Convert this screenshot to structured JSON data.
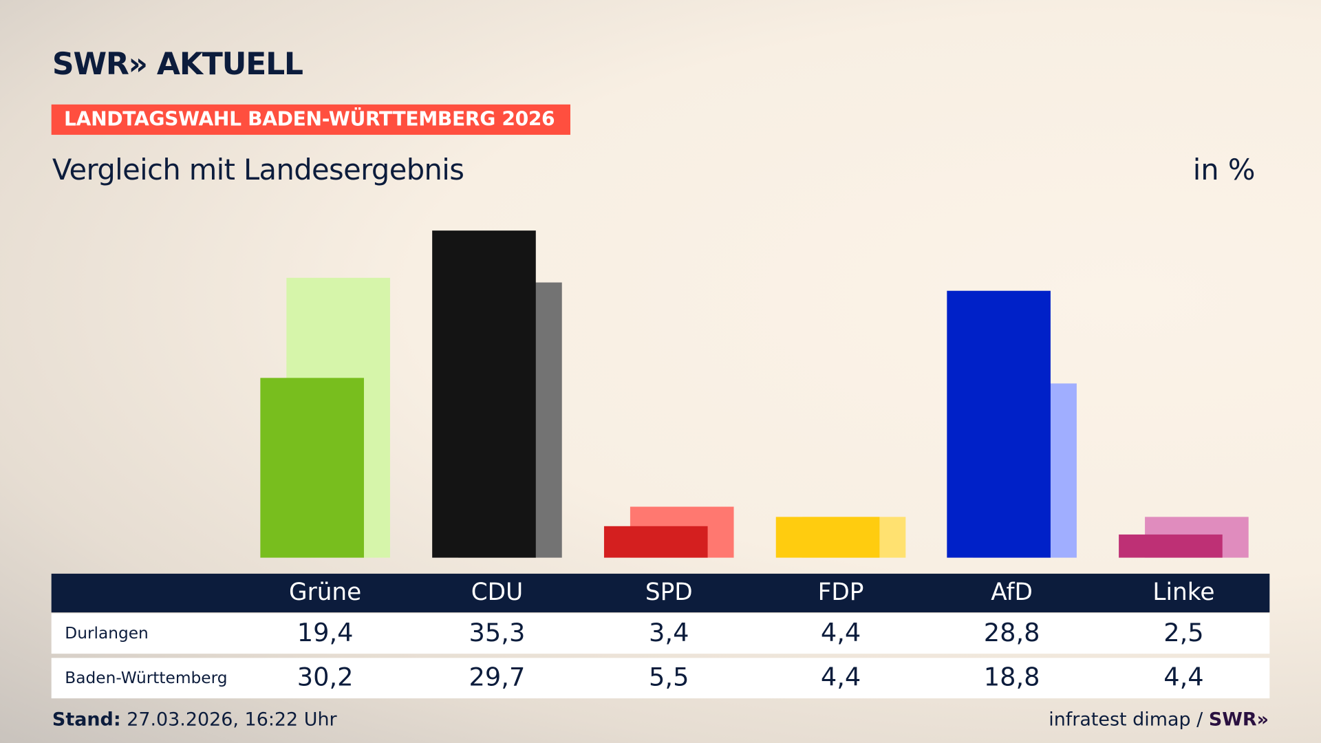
{
  "header": {
    "logo": "SWR» AKTUELL",
    "banner": "LANDTAGSWAHL BADEN-WÜRTTEMBERG 2026",
    "subtitle": "Vergleich mit Landesergebnis",
    "unit": "in %"
  },
  "chart_data": {
    "type": "bar",
    "categories": [
      "Grüne",
      "CDU",
      "SPD",
      "FDP",
      "AfD",
      "Linke"
    ],
    "series": [
      {
        "name": "Durlangen",
        "values": [
          19.4,
          35.3,
          3.4,
          4.4,
          28.8,
          2.5
        ],
        "display": [
          "19,4",
          "35,3",
          "3,4",
          "4,4",
          "28,8",
          "2,5"
        ]
      },
      {
        "name": "Baden-Württemberg",
        "values": [
          30.2,
          29.7,
          5.5,
          4.4,
          18.8,
          4.4
        ],
        "display": [
          "30,2",
          "29,7",
          "5,5",
          "4,4",
          "18,8",
          "4,4"
        ]
      }
    ],
    "colors": {
      "primary": [
        "#78be1e",
        "#141414",
        "#d41f1f",
        "#ffcc0f",
        "#0021c8",
        "#be3075"
      ],
      "secondary": [
        "#d6f5aa",
        "#737373",
        "#ff7870",
        "#ffe170",
        "#a0aeff",
        "#e08cbe"
      ]
    },
    "ylim": [
      0,
      36
    ],
    "grid": false
  },
  "footer": {
    "stand_label": "Stand:",
    "stand_value": "27.03.2026, 16:22 Uhr",
    "source": "infratest dimap /",
    "source_logo": "SWR»"
  }
}
